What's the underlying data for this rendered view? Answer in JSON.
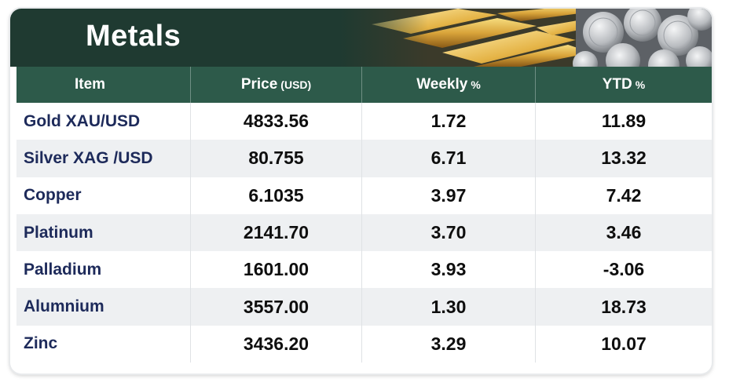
{
  "banner": {
    "title": "Metals",
    "colors": {
      "dark_green": "#1f3a31",
      "header_green": "#2d5a4a",
      "gold": "#e0b64a",
      "silver": "#c9cbce"
    },
    "images": [
      "gold-bars-image",
      "silver-coins-image"
    ]
  },
  "table": {
    "headers": {
      "item": "Item",
      "price": "Price",
      "price_unit": "(USD)",
      "weekly": "Weekly",
      "weekly_unit": "%",
      "ytd": "YTD",
      "ytd_unit": "%"
    },
    "rows": [
      {
        "item": "Gold XAU/USD",
        "price": "4833.56",
        "weekly": "1.72",
        "ytd": "11.89"
      },
      {
        "item": "Silver XAG /USD",
        "price": "80.755",
        "weekly": "6.71",
        "ytd": "13.32"
      },
      {
        "item": "Copper",
        "price": "6.1035",
        "weekly": "3.97",
        "ytd": "7.42"
      },
      {
        "item": "Platinum",
        "price": "2141.70",
        "weekly": "3.70",
        "ytd": "3.46"
      },
      {
        "item": "Palladium",
        "price": "1601.00",
        "weekly": "3.93",
        "ytd": "-3.06"
      },
      {
        "item": "Alumnium",
        "price": "3557.00",
        "weekly": "1.30",
        "ytd": "18.73"
      },
      {
        "item": "Zinc",
        "price": "3436.20",
        "weekly": "3.29",
        "ytd": "10.07"
      }
    ]
  }
}
